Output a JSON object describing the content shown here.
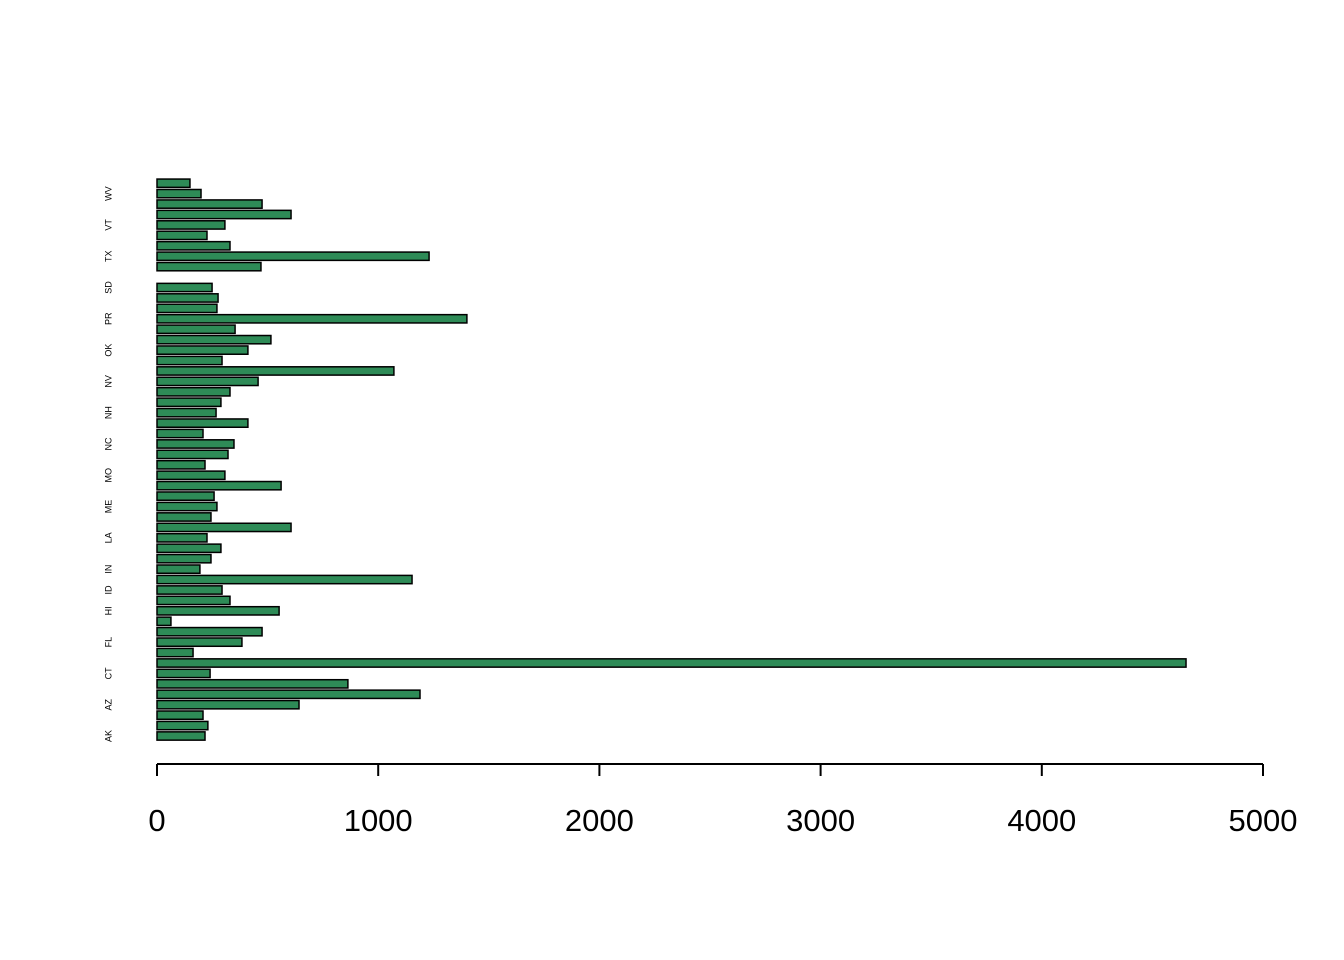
{
  "chart_data": {
    "type": "barh",
    "categories": [
      "AK",
      null,
      null,
      "AZ",
      null,
      null,
      "CT",
      null,
      null,
      "FL",
      null,
      null,
      "HI",
      null,
      "ID",
      null,
      "IN",
      null,
      null,
      "LA",
      null,
      null,
      "ME",
      null,
      null,
      "MO",
      null,
      null,
      "NC",
      null,
      null,
      "NH",
      null,
      null,
      "NV",
      null,
      null,
      "OK",
      null,
      null,
      "PR",
      null,
      null,
      "SD",
      null,
      null,
      "TX",
      null,
      null,
      "VT",
      null,
      null,
      "WV",
      null
    ],
    "values": [
      217,
      230,
      208,
      642,
      1189,
      863,
      240,
      4652,
      163,
      384,
      475,
      63,
      552,
      330,
      294,
      1153,
      194,
      244,
      289,
      226,
      606,
      244,
      271,
      258,
      561,
      307,
      217,
      321,
      348,
      208,
      411,
      267,
      289,
      330,
      457,
      1071,
      294,
      411,
      515,
      353,
      1401,
      271,
      276,
      249,
      null,
      470,
      1230,
      330,
      226,
      307,
      606,
      475,
      199,
      149
    ],
    "color": "#2e8b57",
    "xlim": [
      0,
      5000
    ],
    "xticks": [
      0,
      1000,
      2000,
      3000,
      4000,
      5000
    ]
  }
}
